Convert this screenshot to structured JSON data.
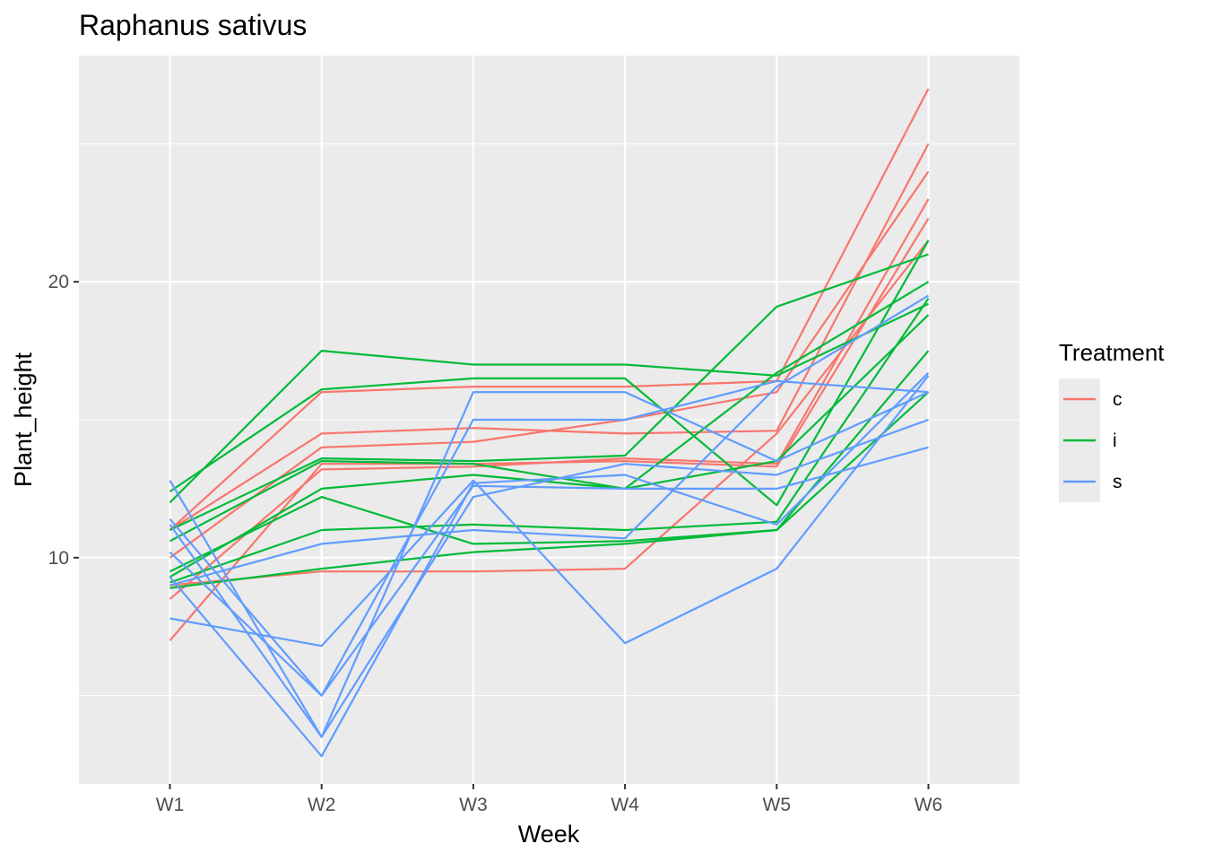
{
  "chart_data": {
    "type": "line",
    "title": "Raphanus sativus",
    "xlabel": "Week",
    "ylabel": "Plant_height",
    "categories": [
      "W1",
      "W2",
      "W3",
      "W4",
      "W5",
      "W6"
    ],
    "ylim": [
      1.8,
      28.2
    ],
    "yticks": [
      10,
      20
    ],
    "grid": true,
    "legend": {
      "title": "Treatment",
      "position": "right",
      "entries": [
        "c",
        "i",
        "s"
      ]
    },
    "colors": {
      "c": "#F8766D",
      "i": "#00BA38",
      "s": "#619CFF"
    },
    "series": [
      {
        "group": "c",
        "values": [
          11.0,
          16.0,
          16.2,
          16.2,
          16.4,
          27.0
        ]
      },
      {
        "group": "c",
        "values": [
          11.0,
          14.5,
          14.7,
          14.5,
          14.6,
          25.0
        ]
      },
      {
        "group": "c",
        "values": [
          10.0,
          14.0,
          14.2,
          15.0,
          16.0,
          24.0
        ]
      },
      {
        "group": "c",
        "values": [
          8.5,
          13.2,
          13.3,
          13.6,
          13.4,
          23.0
        ]
      },
      {
        "group": "c",
        "values": [
          7.0,
          13.4,
          13.4,
          13.5,
          13.3,
          22.3
        ]
      },
      {
        "group": "c",
        "values": [
          9.0,
          9.5,
          9.5,
          9.6,
          14.5,
          21.5
        ]
      },
      {
        "group": "i",
        "values": [
          12.0,
          17.5,
          17.0,
          17.0,
          16.6,
          19.2
        ]
      },
      {
        "group": "i",
        "values": [
          12.4,
          16.1,
          16.5,
          16.5,
          11.9,
          21.5
        ]
      },
      {
        "group": "i",
        "values": [
          11.0,
          13.6,
          13.5,
          13.7,
          19.1,
          21.0
        ]
      },
      {
        "group": "i",
        "values": [
          10.6,
          13.5,
          13.4,
          12.5,
          16.7,
          20.0
        ]
      },
      {
        "group": "i",
        "values": [
          9.3,
          12.5,
          13.0,
          12.5,
          13.5,
          18.8
        ]
      },
      {
        "group": "i",
        "values": [
          9.5,
          12.2,
          10.5,
          10.6,
          11.0,
          17.5
        ]
      },
      {
        "group": "i",
        "values": [
          9.1,
          11.0,
          11.2,
          11.0,
          11.3,
          19.4
        ]
      },
      {
        "group": "i",
        "values": [
          8.9,
          9.6,
          10.2,
          10.5,
          11.0,
          16.0
        ]
      },
      {
        "group": "s",
        "values": [
          12.8,
          3.5,
          16.0,
          16.0,
          13.5,
          16.0
        ]
      },
      {
        "group": "s",
        "values": [
          11.4,
          5.0,
          15.0,
          15.0,
          16.4,
          16.0
        ]
      },
      {
        "group": "s",
        "values": [
          11.2,
          3.5,
          12.2,
          13.4,
          13.0,
          15.0
        ]
      },
      {
        "group": "s",
        "values": [
          10.2,
          5.0,
          12.6,
          12.5,
          12.5,
          14.0
        ]
      },
      {
        "group": "s",
        "values": [
          9.3,
          2.8,
          12.7,
          13.0,
          11.2,
          16.7
        ]
      },
      {
        "group": "s",
        "values": [
          9.0,
          10.5,
          11.0,
          10.7,
          16.2,
          19.5
        ]
      },
      {
        "group": "s",
        "values": [
          7.8,
          6.8,
          12.8,
          6.9,
          9.6,
          16.6
        ]
      }
    ]
  }
}
